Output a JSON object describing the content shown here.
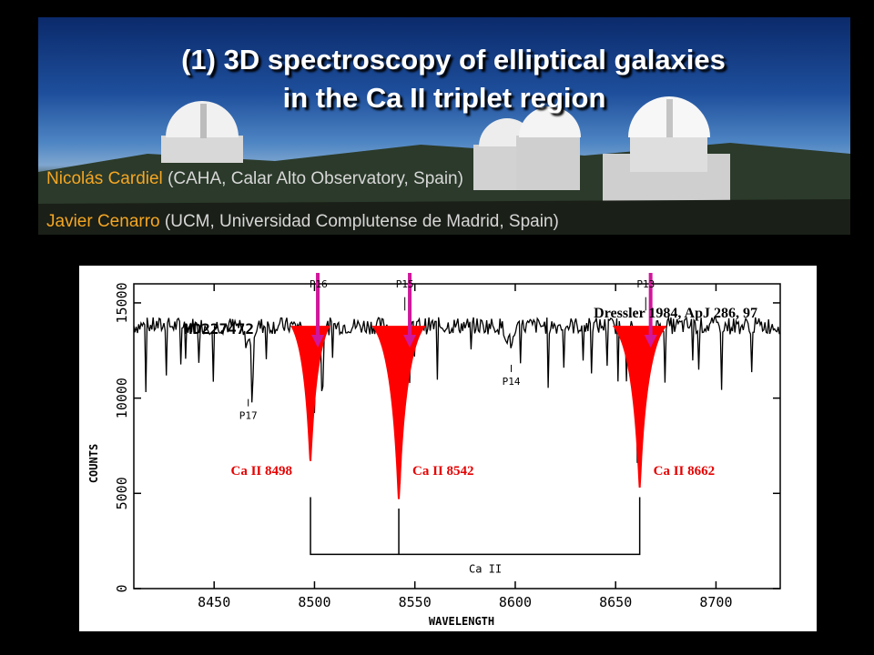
{
  "header": {
    "title_line1": "(1)  3D spectroscopy of elliptical galaxies",
    "title_line2": "in the Ca II triplet region",
    "authors": [
      {
        "name": "Nicolás Cardiel",
        "affiliation": "(CAHA, Calar Alto Observatory, Spain)"
      },
      {
        "name": "Javier Cenarro",
        "affiliation": "(UCM, Universidad Complutense de Madrid, Spain)"
      }
    ]
  },
  "chart_data": {
    "type": "line",
    "star_label": "HD227472",
    "citation": "Dressler 1984, ApJ 286, 97",
    "xlabel": "WAVELENGTH",
    "ylabel": "COUNTS",
    "xlim": [
      8410,
      8732
    ],
    "ylim": [
      0,
      16000
    ],
    "xticks": [
      "8450",
      "8500",
      "8550",
      "8600",
      "8650",
      "8700"
    ],
    "yticks": [
      "0",
      "5000",
      "10000",
      "15000"
    ],
    "lines": [
      {
        "label": "Ca II   8498",
        "center": 8498,
        "min": 6700
      },
      {
        "label": "Ca II   8542",
        "center": 8542,
        "min": 4700
      },
      {
        "label": "Ca II   8662",
        "center": 8662,
        "min": 5300
      }
    ],
    "paschen": [
      {
        "label": "P16",
        "x": 8502
      },
      {
        "label": "P15",
        "x": 8545
      },
      {
        "label": "P13",
        "x": 8665
      },
      {
        "label": "P14",
        "x": 8598
      },
      {
        "label": "P17",
        "x": 8467
      }
    ],
    "bracket_label": "Ca II",
    "colors": {
      "line": "#ff0000",
      "arrow": "#d0179b",
      "trace": "#000000",
      "labels": "#e60000"
    }
  }
}
